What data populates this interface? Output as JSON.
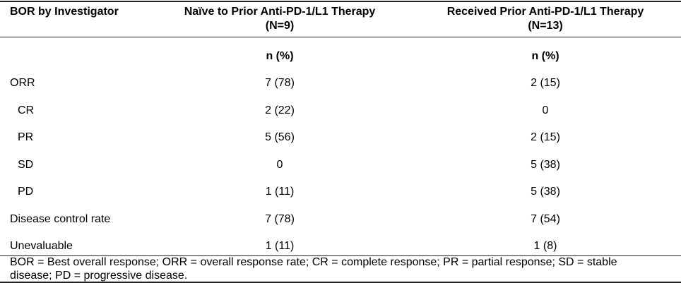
{
  "table": {
    "header": [
      [
        "BOR by Investigator"
      ],
      [
        "Naïve to Prior Anti-PD-1/L1 Therapy",
        "(N=9)"
      ],
      [
        "Received Prior Anti-PD-1/L1 Therapy",
        "(N=13)"
      ]
    ],
    "subheader": [
      "n (%)",
      "n (%)"
    ],
    "rows": [
      [
        "ORR",
        "7 (78)",
        "2 (15)"
      ],
      [
        "CR",
        "2 (22)",
        "0"
      ],
      [
        "PR",
        "5 (56)",
        "2 (15)"
      ],
      [
        "SD",
        "0",
        "5 (38)"
      ],
      [
        "PD",
        "1 (11)",
        "5 (38)"
      ],
      [
        "Disease control rate",
        "7 (78)",
        "7 (54)"
      ],
      [
        "Unevaluable",
        "1 (11)",
        "1 (8)"
      ]
    ],
    "footnote": [
      "BOR =  Best overall response; ORR =  overall response rate; CR = complete response; PR =  partial response; SD = stable",
      "disease; PD =  progressive disease."
    ]
  }
}
